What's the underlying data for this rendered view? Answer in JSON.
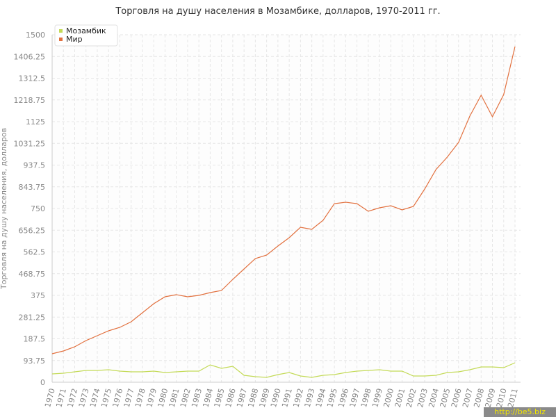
{
  "chart_data": {
    "type": "line",
    "title": "Торговля на душу населения в Мозамбике, долларов, 1970-2011 гг.",
    "y_label": "Торговля на душу населения, долларов",
    "watermark": "http://be5.biz",
    "x": [
      1970,
      1971,
      1972,
      1973,
      1974,
      1975,
      1976,
      1977,
      1978,
      1979,
      1980,
      1981,
      1982,
      1983,
      1984,
      1985,
      1986,
      1987,
      1988,
      1989,
      1990,
      1991,
      1992,
      1993,
      1994,
      1995,
      1996,
      1997,
      1998,
      1999,
      2000,
      2001,
      2002,
      2003,
      2004,
      2005,
      2006,
      2007,
      2008,
      2009,
      2010,
      2011
    ],
    "xlim": [
      1970,
      2011
    ],
    "xticks": [
      1970,
      1971,
      1972,
      1973,
      1974,
      1975,
      1976,
      1977,
      1978,
      1979,
      1980,
      1981,
      1982,
      1983,
      1984,
      1985,
      1986,
      1987,
      1988,
      1989,
      1990,
      1991,
      1992,
      1993,
      1994,
      1995,
      1996,
      1997,
      1998,
      1999,
      2000,
      2001,
      2002,
      2003,
      2004,
      2005,
      2006,
      2007,
      2008,
      2009,
      2010,
      2011
    ],
    "ylim": [
      0,
      1500
    ],
    "yticks": [
      0,
      93.75,
      187.5,
      281.25,
      375,
      468.75,
      562.5,
      656.25,
      750,
      843.75,
      937.5,
      1031.25,
      1125,
      1218.75,
      1312.5,
      1406.25,
      1500
    ],
    "grid": true,
    "legend": "top-left",
    "series": [
      {
        "name": "Мозамбик",
        "color": "#c3da56",
        "values": [
          36,
          39,
          45,
          51,
          51,
          54,
          48,
          45,
          45,
          48,
          42,
          45,
          48,
          48,
          75,
          60,
          69,
          30,
          24,
          21,
          33,
          42,
          27,
          21,
          30,
          33,
          42,
          48,
          51,
          54,
          48,
          48,
          27,
          27,
          30,
          42,
          45,
          54,
          66,
          66,
          63,
          84
        ]
      },
      {
        "name": "Мир",
        "color": "#e2703e",
        "values": [
          123,
          135,
          153,
          180,
          201,
          222,
          237,
          261,
          300,
          339,
          369,
          378,
          369,
          375,
          387,
          396,
          444,
          489,
          534,
          549,
          588,
          624,
          669,
          660,
          699,
          771,
          777,
          771,
          738,
          753,
          762,
          744,
          759,
          834,
          918,
          972,
          1035,
          1149,
          1239,
          1146,
          1242,
          1449
        ]
      }
    ]
  }
}
